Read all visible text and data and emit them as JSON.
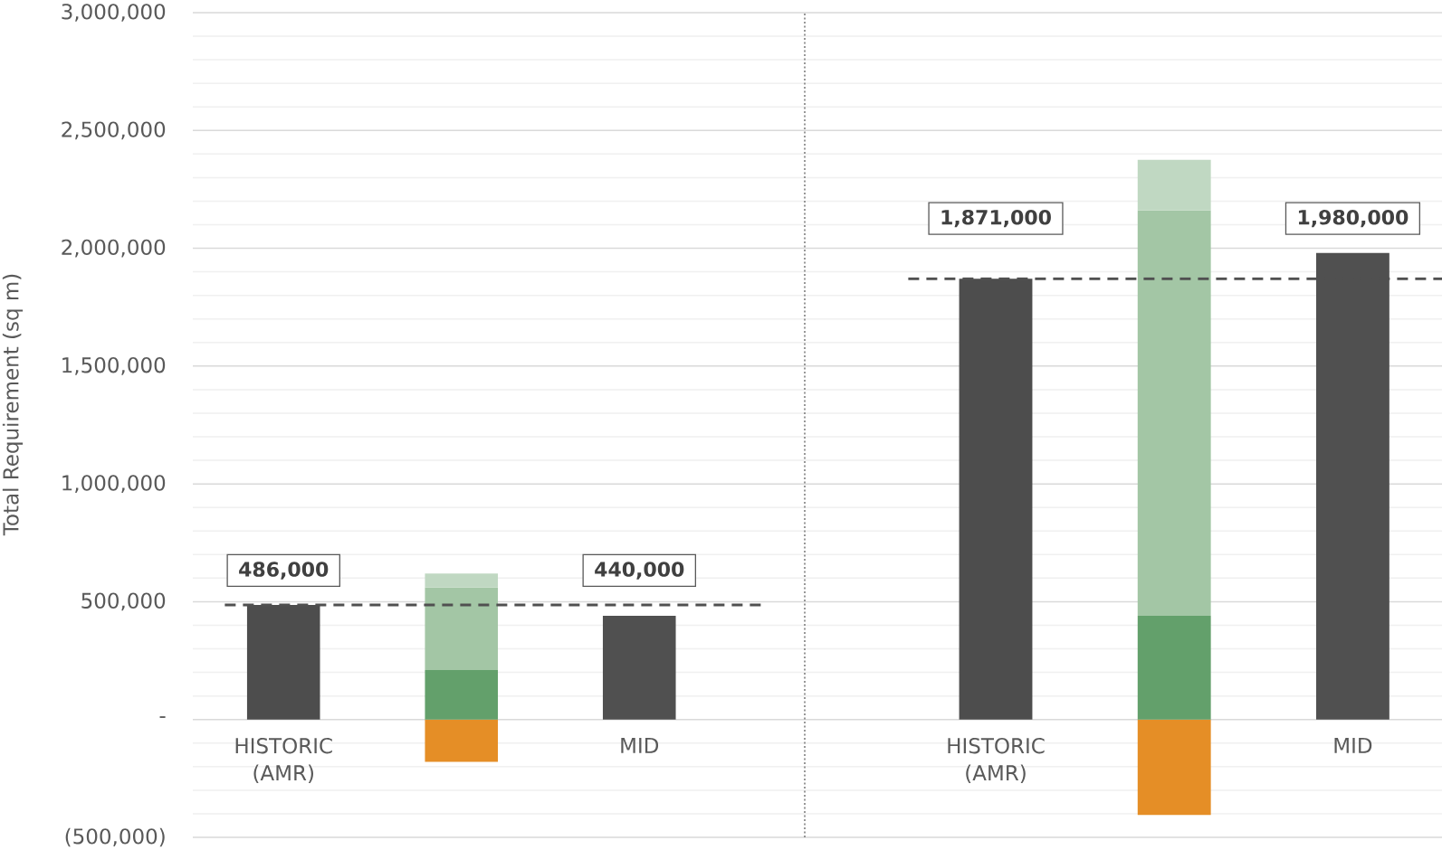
{
  "chart_data": [
    {
      "type": "bar",
      "stacked": true,
      "categories": [
        "HISTORIC (AMR)",
        null,
        "MID"
      ],
      "series": [
        {
          "color": "#4d4d4d",
          "values": [
            486000,
            null,
            null
          ],
          "value_labels": [
            "486,000",
            null,
            null
          ]
        },
        {
          "color": "#e58e26",
          "values": [
            null,
            -180000,
            null
          ]
        },
        {
          "color": "#63a06b",
          "values": [
            null,
            210000,
            null
          ]
        },
        {
          "color": "#a3c6a5",
          "values": [
            null,
            350000,
            null
          ]
        },
        {
          "color": "#c0d8c2",
          "values": [
            null,
            60000,
            null
          ]
        },
        {
          "color": "#505050",
          "values": [
            null,
            null,
            440000
          ],
          "value_labels": [
            null,
            null,
            "440,000"
          ]
        }
      ],
      "ylabel": "Total Requirement (sq m)",
      "ylim": [
        -500000,
        3000000
      ],
      "yticks": [
        {
          "value": -500000,
          "label": "(500,000)"
        },
        {
          "value": -400000,
          "label": null
        },
        {
          "value": -300000,
          "label": null
        },
        {
          "value": -200000,
          "label": null
        },
        {
          "value": -100000,
          "label": null
        },
        {
          "value": 0,
          "label": "-"
        },
        {
          "value": 100000,
          "label": null
        },
        {
          "value": 200000,
          "label": null
        },
        {
          "value": 300000,
          "label": null
        },
        {
          "value": 400000,
          "label": null
        },
        {
          "value": 500000,
          "label": "500,000"
        },
        {
          "value": 600000,
          "label": null
        },
        {
          "value": 700000,
          "label": null
        },
        {
          "value": 800000,
          "label": null
        },
        {
          "value": 900000,
          "label": null
        },
        {
          "value": 1000000,
          "label": "1,000,000"
        },
        {
          "value": 1100000,
          "label": null
        },
        {
          "value": 1200000,
          "label": null
        },
        {
          "value": 1300000,
          "label": null
        },
        {
          "value": 1400000,
          "label": null
        },
        {
          "value": 1500000,
          "label": "1,500,000"
        },
        {
          "value": 1600000,
          "label": null
        },
        {
          "value": 1700000,
          "label": null
        },
        {
          "value": 1800000,
          "label": null
        },
        {
          "value": 1900000,
          "label": null
        },
        {
          "value": 2000000,
          "label": "2,000,000"
        },
        {
          "value": 2100000,
          "label": null
        },
        {
          "value": 2200000,
          "label": null
        },
        {
          "value": 2300000,
          "label": null
        },
        {
          "value": 2400000,
          "label": null
        },
        {
          "value": 2500000,
          "label": "2,500,000"
        },
        {
          "value": 2600000,
          "label": null
        },
        {
          "value": 2700000,
          "label": null
        },
        {
          "value": 2800000,
          "label": null
        },
        {
          "value": 2900000,
          "label": null
        },
        {
          "value": 3000000,
          "label": "3,000,000"
        }
      ],
      "grid": "y",
      "ref_lines": [
        {
          "axis": "y",
          "value": 486000,
          "color": "#505050",
          "line_style": "dashed"
        }
      ]
    },
    {
      "type": "bar",
      "stacked": true,
      "categories": [
        "HISTORIC (AMR)",
        null,
        "MID"
      ],
      "series": [
        {
          "color": "#4d4d4d",
          "values": [
            1871000,
            null,
            null
          ],
          "value_labels": [
            "1,871,000",
            null,
            null
          ]
        },
        {
          "color": "#e58e26",
          "values": [
            null,
            -405000,
            null
          ]
        },
        {
          "color": "#63a06b",
          "values": [
            null,
            440000,
            null
          ]
        },
        {
          "color": "#a3c6a5",
          "values": [
            null,
            1720000,
            null
          ]
        },
        {
          "color": "#c0d8c2",
          "values": [
            null,
            215000,
            null
          ]
        },
        {
          "color": "#505050",
          "values": [
            null,
            null,
            1980000
          ],
          "value_labels": [
            null,
            null,
            "1,980,000"
          ]
        }
      ],
      "ylim": [
        -500000,
        3000000
      ],
      "yticks": [
        -500000,
        {
          "value": -400000,
          "label": null
        },
        {
          "value": -300000,
          "label": null
        },
        {
          "value": -200000,
          "label": null
        },
        {
          "value": -100000,
          "label": null
        },
        0,
        {
          "value": 100000,
          "label": null
        },
        {
          "value": 200000,
          "label": null
        },
        {
          "value": 300000,
          "label": null
        },
        {
          "value": 400000,
          "label": null
        },
        500000,
        {
          "value": 600000,
          "label": null
        },
        {
          "value": 700000,
          "label": null
        },
        {
          "value": 800000,
          "label": null
        },
        {
          "value": 900000,
          "label": null
        },
        1000000,
        {
          "value": 1100000,
          "label": null
        },
        {
          "value": 1200000,
          "label": null
        },
        {
          "value": 1300000,
          "label": null
        },
        {
          "value": 1400000,
          "label": null
        },
        1500000,
        {
          "value": 1600000,
          "label": null
        },
        {
          "value": 1700000,
          "label": null
        },
        {
          "value": 1800000,
          "label": null
        },
        {
          "value": 1900000,
          "label": null
        },
        2000000,
        {
          "value": 2100000,
          "label": null
        },
        {
          "value": 2200000,
          "label": null
        },
        {
          "value": 2300000,
          "label": null
        },
        {
          "value": 2400000,
          "label": null
        },
        2500000,
        {
          "value": 2600000,
          "label": null
        },
        {
          "value": 2700000,
          "label": null
        },
        {
          "value": 2800000,
          "label": null
        },
        {
          "value": 2900000,
          "label": null
        },
        3000000
      ],
      "grid": "y",
      "tick_labels": "x",
      "ref_lines": [
        {
          "axis": "y",
          "value": 1871000,
          "color": "#505050",
          "line_style": "dashed"
        }
      ]
    }
  ]
}
